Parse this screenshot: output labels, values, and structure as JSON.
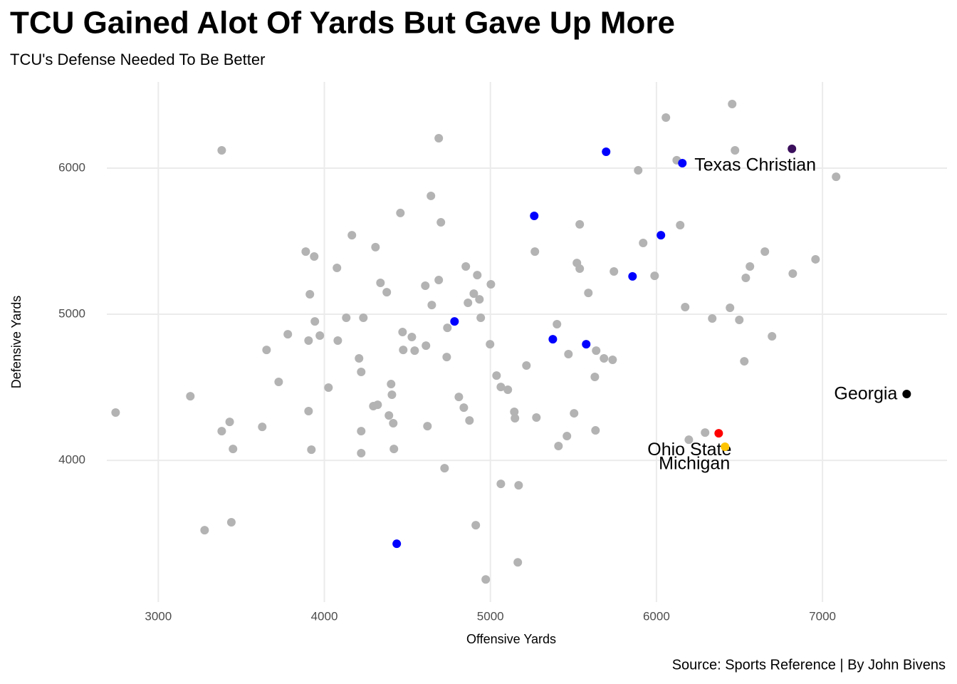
{
  "chart_data": {
    "type": "scatter",
    "title": "TCU Gained Alot Of Yards But Gave Up More",
    "subtitle": "TCU's Defense Needed To Be Better",
    "x_label": "Offensive Yards",
    "y_label": "Defensive Yards",
    "caption": "Source: Sports Reference | By John Bivens",
    "xlim": [
      2690,
      7750
    ],
    "ylim": [
      3030,
      6590
    ],
    "xticks": [
      3000,
      4000,
      5000,
      6000,
      7000
    ],
    "yticks": [
      4000,
      5000,
      6000
    ],
    "grid": true,
    "series": [
      {
        "color": "#b3b3b3",
        "x": [
          2743,
          3193,
          3279,
          3382,
          3382,
          3430,
          3440,
          3450,
          3626,
          3652,
          3725,
          3780,
          3888,
          3905,
          3905,
          3913,
          3922,
          3939,
          3943,
          3973,
          4025,
          4076,
          4081,
          4132,
          4166,
          4209,
          4222,
          4222,
          4222,
          4235,
          4295,
          4308,
          4321,
          4338,
          4376,
          4389,
          4402,
          4407,
          4415,
          4419,
          4458,
          4471,
          4475,
          4544,
          4527,
          4608,
          4612,
          4621,
          4642,
          4647,
          4689,
          4689,
          4702,
          4724,
          4737,
          4741,
          4810,
          4840,
          4852,
          4865,
          4874,
          4900,
          4912,
          4921,
          4934,
          4942,
          4972,
          4998,
          5003,
          5037,
          5063,
          5063,
          5105,
          5144,
          5148,
          5165,
          5170,
          5217,
          5268,
          5277,
          5401,
          5410,
          5461,
          5470,
          5504,
          5521,
          5538,
          5538,
          5590,
          5629,
          5633,
          5637,
          5684,
          5736,
          5744,
          5890,
          5920,
          5989,
          6057,
          6122,
          6143,
          6173,
          6195,
          6293,
          6336,
          6443,
          6456,
          6473,
          6499,
          6538,
          6529,
          6563,
          6653,
          6696,
          6821,
          6958,
          7082
        ],
        "values": [
          4327,
          4439,
          3522,
          6122,
          4200,
          4263,
          3576,
          4078,
          4229,
          4756,
          4537,
          4863,
          5429,
          4337,
          4820,
          5137,
          4073,
          5395,
          4951,
          4854,
          4498,
          5317,
          4820,
          4976,
          5541,
          4698,
          4605,
          4200,
          4049,
          4976,
          4371,
          5459,
          4380,
          5215,
          5151,
          4307,
          4522,
          4449,
          4254,
          4078,
          5693,
          4878,
          4756,
          4751,
          4844,
          5195,
          4785,
          4234,
          5810,
          5063,
          6205,
          5234,
          5629,
          3946,
          4707,
          4907,
          4434,
          4361,
          5327,
          5078,
          4273,
          5141,
          3556,
          5268,
          5102,
          4976,
          3185,
          4795,
          5205,
          4580,
          4502,
          3839,
          4483,
          4332,
          4288,
          3302,
          3829,
          4649,
          5429,
          4293,
          4932,
          4098,
          4166,
          4727,
          4322,
          5351,
          5312,
          5615,
          5146,
          4571,
          4205,
          4751,
          4698,
          4688,
          5293,
          5985,
          5488,
          5263,
          6346,
          6054,
          5610,
          5049,
          4141,
          4190,
          4971,
          5044,
          6439,
          6122,
          4961,
          5249,
          4678,
          5327,
          5429,
          4849,
          5278,
          5376,
          5941
        ]
      },
      {
        "color": "#0000ff",
        "x": [
          4436,
          4784,
          5264,
          5376,
          5577,
          5697,
          5856,
          6027,
          6156
        ],
        "values": [
          3429,
          4951,
          5673,
          4829,
          4795,
          6112,
          5259,
          5541,
          6034
        ]
      },
      {
        "name": "Texas Christian",
        "color": "#3b0f5c",
        "x": [
          6816
        ],
        "values": [
          6132
        ]
      },
      {
        "name": "Ohio State",
        "color": "#ff0000",
        "x": [
          6375
        ],
        "values": [
          4185
        ]
      },
      {
        "name": "Michigan",
        "color": "#ffc400",
        "x": [
          6413
        ],
        "values": [
          4093
        ]
      },
      {
        "name": "Georgia",
        "color": "#000000",
        "x": [
          7507
        ],
        "values": [
          4454
        ]
      }
    ]
  }
}
